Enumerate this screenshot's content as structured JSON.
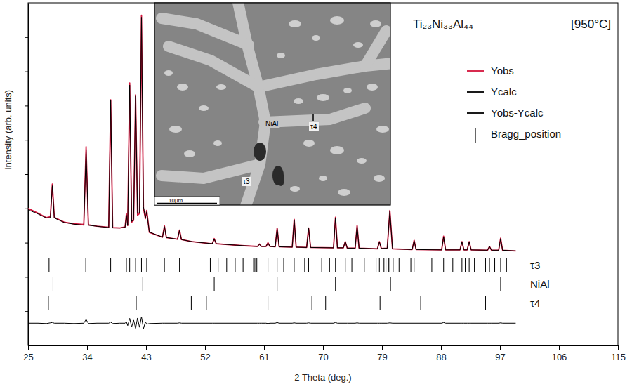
{
  "chart_data": {
    "type": "line",
    "title": "Ti₂₃Ni₃₃Al₄₄",
    "subtitle": "[950°C]",
    "x_label": "2 Theta (deg.)",
    "y_label": "Intensity (arb. units)",
    "xlim": [
      25,
      115
    ],
    "xticks": [
      25,
      34,
      43,
      52,
      61,
      70,
      79,
      88,
      97,
      106,
      115
    ],
    "ylim": [
      0,
      100
    ],
    "yticks": [
      10,
      20,
      30,
      40,
      50,
      60,
      70,
      80,
      90
    ],
    "tick_labels": "x",
    "grid": false,
    "legend": "upper right",
    "x": [
      25.0,
      26.5,
      27.8,
      28.4,
      28.7,
      29.0,
      30.5,
      32.0,
      33.5,
      33.85,
      34.2,
      35.5,
      37.3,
      37.6,
      37.9,
      39.0,
      39.8,
      40.0,
      40.2,
      40.5,
      40.8,
      41.1,
      41.4,
      41.7,
      42.0,
      42.3,
      42.6,
      42.9,
      43.1,
      43.5,
      45.5,
      45.8,
      46.1,
      47.8,
      48.1,
      48.4,
      50.0,
      53.1,
      53.4,
      53.7,
      58.0,
      60.0,
      60.3,
      60.6,
      61.3,
      61.6,
      61.9,
      62.7,
      63.0,
      63.3,
      65.3,
      65.6,
      65.9,
      67.5,
      67.8,
      68.1,
      71.6,
      71.9,
      72.2,
      73.1,
      73.4,
      73.7,
      74.9,
      75.2,
      75.5,
      78.3,
      78.6,
      78.9,
      79.8,
      80.2,
      80.6,
      83.6,
      83.9,
      84.2,
      88.1,
      88.4,
      88.7,
      90.9,
      91.2,
      91.5,
      92.0,
      92.3,
      92.6,
      95.1,
      95.4,
      95.7,
      96.8,
      97.1,
      97.4,
      99.4
    ],
    "series": [
      {
        "name": "Yobs",
        "color": "#d4143c",
        "type": "line",
        "line_style": "solid",
        "values": [
          40.0,
          38.6,
          37.3,
          37.6,
          47.1,
          37.4,
          36.0,
          35.5,
          35.3,
          58.0,
          35.2,
          34.8,
          34.5,
          71.7,
          34.4,
          34.3,
          34.6,
          38.4,
          35.0,
          76.6,
          36.0,
          36.5,
          73.1,
          38.0,
          38.5,
          96.4,
          40.0,
          37.0,
          39.4,
          33.0,
          31.6,
          34.9,
          31.5,
          31.0,
          33.7,
          30.9,
          30.3,
          29.7,
          31.2,
          29.7,
          29.1,
          28.9,
          29.6,
          28.9,
          28.9,
          30.0,
          28.9,
          28.8,
          34.3,
          28.8,
          28.7,
          36.8,
          28.7,
          28.6,
          34.3,
          28.6,
          28.5,
          37.4,
          28.5,
          28.5,
          30.3,
          28.4,
          28.4,
          35.0,
          28.4,
          28.2,
          30.3,
          28.3,
          28.4,
          39.4,
          28.2,
          28.0,
          30.7,
          28.0,
          27.9,
          31.9,
          27.9,
          27.9,
          30.3,
          27.9,
          27.9,
          30.3,
          27.9,
          27.8,
          28.9,
          27.8,
          27.8,
          31.3,
          27.8,
          27.6
        ]
      },
      {
        "name": "Ycalc",
        "color": "#000000",
        "type": "line",
        "line_style": "solid",
        "values": [
          39.6,
          38.4,
          37.2,
          37.3,
          46.6,
          37.2,
          35.9,
          35.4,
          35.1,
          57.2,
          35.1,
          34.8,
          34.4,
          71.5,
          34.3,
          34.3,
          34.5,
          38.0,
          35.0,
          76.0,
          36.2,
          36.8,
          72.8,
          38.5,
          38.8,
          95.8,
          40.5,
          37.2,
          39.0,
          33.1,
          31.6,
          34.7,
          31.5,
          31.0,
          33.5,
          30.9,
          30.3,
          29.7,
          31.1,
          29.7,
          29.1,
          28.9,
          29.5,
          28.9,
          28.9,
          29.9,
          28.9,
          28.8,
          34.1,
          28.8,
          28.7,
          36.7,
          28.7,
          28.6,
          34.2,
          28.6,
          28.5,
          37.2,
          28.5,
          28.5,
          30.3,
          28.4,
          28.4,
          34.9,
          28.4,
          28.2,
          30.2,
          28.3,
          28.4,
          39.3,
          28.2,
          28.0,
          30.6,
          28.0,
          27.9,
          31.7,
          27.9,
          27.9,
          30.2,
          27.9,
          27.9,
          30.2,
          27.9,
          27.8,
          28.9,
          27.8,
          27.8,
          31.2,
          27.8,
          27.6
        ]
      },
      {
        "name": "Yobs-Ycalc",
        "color": "#000000",
        "type": "line",
        "line_style": "solid",
        "values": [
          6.5,
          6.5,
          6.4,
          6.6,
          6.7,
          6.5,
          6.5,
          6.4,
          6.5,
          7.6,
          6.4,
          6.5,
          6.5,
          6.8,
          6.4,
          6.5,
          6.5,
          6.9,
          5.8,
          7.9,
          5.4,
          7.4,
          5.0,
          8.0,
          5.3,
          8.4,
          4.9,
          6.9,
          6.2,
          6.4,
          6.5,
          6.5,
          6.5,
          6.5,
          6.6,
          6.5,
          6.5,
          6.5,
          6.5,
          6.5,
          6.5,
          6.5,
          6.5,
          6.5,
          6.5,
          6.4,
          6.5,
          6.5,
          6.7,
          6.5,
          6.5,
          6.6,
          6.5,
          6.5,
          6.6,
          6.5,
          6.5,
          6.7,
          6.5,
          6.5,
          6.5,
          6.5,
          6.5,
          6.6,
          6.5,
          6.5,
          6.5,
          6.5,
          6.5,
          6.6,
          6.5,
          6.5,
          6.5,
          6.5,
          6.5,
          6.7,
          6.5,
          6.5,
          6.5,
          6.5,
          6.5,
          6.5,
          6.5,
          6.5,
          6.5,
          6.5,
          6.5,
          6.6,
          6.5,
          6.5
        ]
      }
    ],
    "bragg_positions": {
      "name": "Bragg_position",
      "color": "#000000",
      "phases": [
        {
          "name": "τ3",
          "positions": [
            28.2,
            33.8,
            37.6,
            40.0,
            40.5,
            41.4,
            42.3,
            43.1,
            45.8,
            48.1,
            52.8,
            54.0,
            55.3,
            56.6,
            57.8,
            59.4,
            59.6,
            59.9,
            61.6,
            63.0,
            64.0,
            65.6,
            67.2,
            67.8,
            69.8,
            71.0,
            71.9,
            73.4,
            74.4,
            76.3,
            78.1,
            78.6,
            79.3,
            79.6,
            80.0,
            80.2,
            80.7,
            81.6,
            83.4,
            83.9,
            86.6,
            88.4,
            89.8,
            91.2,
            91.7,
            92.3,
            93.1,
            94.8,
            95.4,
            96.2,
            97.1,
            98.0
          ]
        },
        {
          "name": "NiAl",
          "positions": [
            28.8,
            42.5,
            53.4,
            63.0,
            71.9,
            80.3,
            97.1
          ]
        },
        {
          "name": "τ4",
          "positions": [
            28.1,
            41.5,
            49.9,
            52.2,
            61.6,
            68.3,
            70.4,
            78.7,
            84.9,
            94.8
          ]
        }
      ]
    },
    "inset": {
      "labels": [
        "NiAl",
        "τ4",
        "τ3"
      ],
      "scale_bar": "10μm"
    }
  }
}
